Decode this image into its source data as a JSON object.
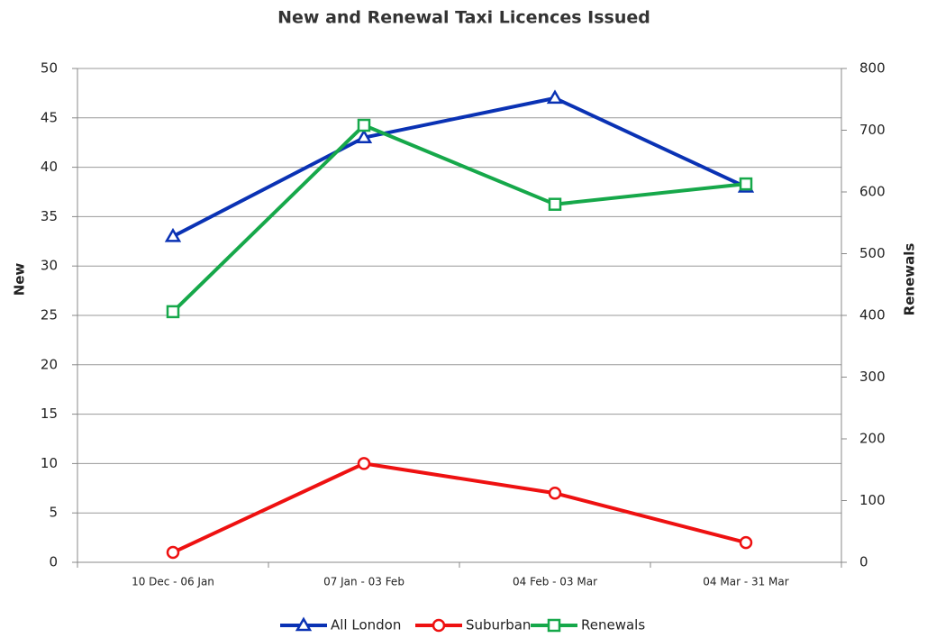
{
  "chart_data": {
    "type": "line",
    "title": "New and Renewal Taxi Licences Issued",
    "categories": [
      "10 Dec - 06 Jan",
      "07 Jan - 03 Feb",
      "04 Feb - 03 Mar",
      "04 Mar - 31 Mar"
    ],
    "series": [
      {
        "name": "All London",
        "color": "#0a32b4",
        "marker": "triangle",
        "values": [
          33,
          43,
          47,
          38
        ]
      },
      {
        "name": "Suburban",
        "color": "#ee1111",
        "marker": "circle",
        "values": [
          1,
          10,
          7,
          2
        ]
      },
      {
        "name": "Renewals",
        "color": "#16a84a",
        "marker": "square",
        "axis": "y2",
        "values": [
          406,
          708,
          580,
          613
        ]
      }
    ],
    "ylabel": "New",
    "y2label": "Renewals",
    "ylim": [
      0,
      50
    ],
    "yticks": [
      0,
      5,
      10,
      15,
      20,
      25,
      30,
      35,
      40,
      45,
      50
    ],
    "y2lim": [
      0,
      800
    ],
    "y2ticks": [
      0,
      100,
      200,
      300,
      400,
      500,
      600,
      700,
      800
    ],
    "grid": true,
    "legend": "bottom"
  }
}
